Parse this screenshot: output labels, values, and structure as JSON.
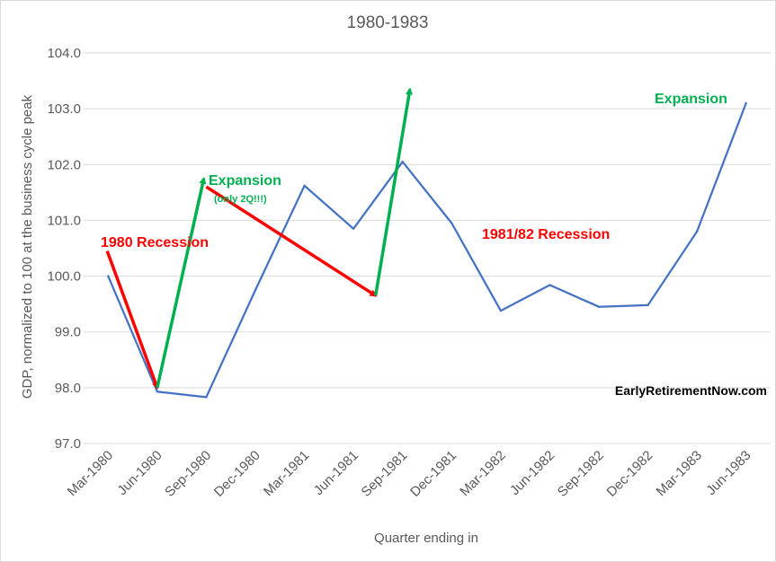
{
  "chart_data": {
    "type": "line",
    "title": "1980-1983",
    "xlabel": "Quarter ending in",
    "ylabel": "GDP, normalized to 100 at the business cycle peak",
    "categories": [
      "Mar-1980",
      "Jun-1980",
      "Sep-1980",
      "Dec-1980",
      "Mar-1981",
      "Jun-1981",
      "Sep-1981",
      "Dec-1981",
      "Mar-1982",
      "Jun-1982",
      "Sep-1982",
      "Dec-1982",
      "Mar-1983",
      "Jun-1983"
    ],
    "series": [
      {
        "values": [
          100.0,
          97.93,
          97.83,
          99.75,
          101.62,
          100.85,
          102.05,
          100.95,
          99.38,
          99.84,
          99.45,
          99.48,
          100.8,
          103.1
        ],
        "color": "#4472c4"
      }
    ],
    "ylim": [
      97.0,
      104.0
    ],
    "yticks": [
      "97.0",
      "98.0",
      "99.0",
      "100.0",
      "101.0",
      "102.0",
      "103.0",
      "104.0"
    ],
    "grid": true,
    "annotations": [
      {
        "text": "1980 Recession",
        "color": "#ff0000"
      },
      {
        "text": "Expansion",
        "color": "#00b050"
      },
      {
        "text": "(only 2Q!!!)",
        "color": "#00b050"
      },
      {
        "text": "1981/82 Recession",
        "color": "#ff0000"
      },
      {
        "text": "Expansion",
        "color": "#00b050"
      }
    ],
    "arrows": [
      {
        "from": [
          -0.02,
          100.45
        ],
        "to": [
          1.0,
          98.0
        ],
        "color": "#ff0000"
      },
      {
        "from": [
          1.0,
          98.0
        ],
        "to": [
          1.95,
          101.75
        ],
        "color": "#00b050"
      },
      {
        "from": [
          2.0,
          101.6
        ],
        "to": [
          5.45,
          99.65
        ],
        "color": "#ff0000"
      },
      {
        "from": [
          5.45,
          99.65
        ],
        "to": [
          6.15,
          103.35
        ],
        "color": "#00b050"
      }
    ],
    "watermark": "EarlyRetirementNow.com"
  }
}
